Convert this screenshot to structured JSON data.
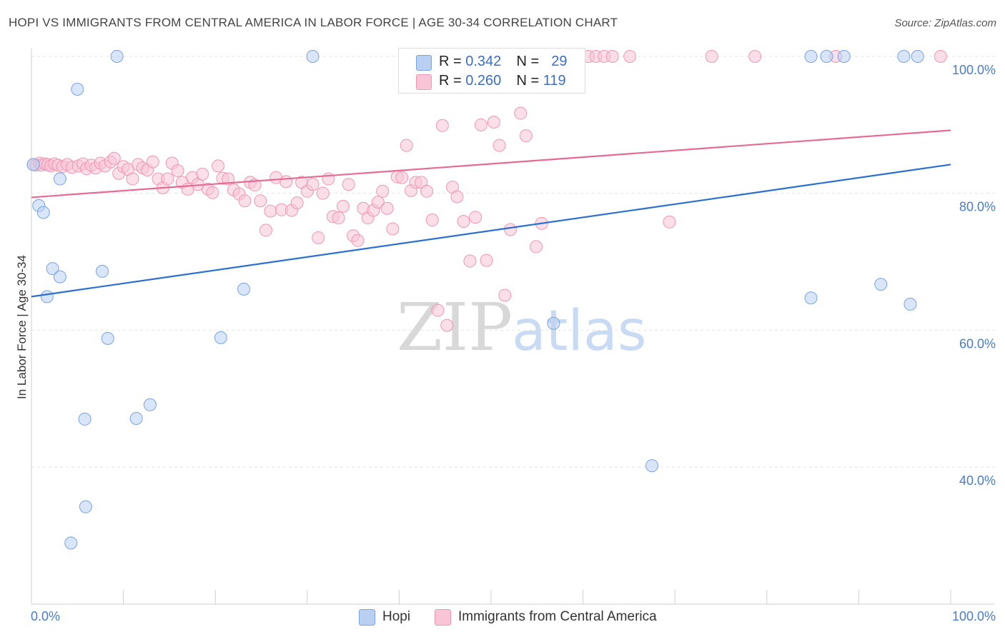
{
  "title": "HOPI VS IMMIGRANTS FROM CENTRAL AMERICA IN LABOR FORCE | AGE 30-34 CORRELATION CHART",
  "source": "Source: ZipAtlas.com",
  "watermark": {
    "zip": "ZIP",
    "atlas": "atlas"
  },
  "legend": {
    "r_label": "R =",
    "n_label": "N =",
    "hopi": {
      "r": "0.342",
      "n": "29"
    },
    "immigrants": {
      "r": "0.260",
      "n": "119"
    }
  },
  "bottom_legend": {
    "hopi": "Hopi",
    "immigrants": "Immigrants from Central America"
  },
  "colors": {
    "hopi_fill": "#b9d0f3",
    "hopi_stroke": "#7aa3e0",
    "hopi_line": "#2b6fd1",
    "imm_fill": "#f7c5d5",
    "imm_stroke": "#ee97b4",
    "imm_line": "#e56b93",
    "tick_text": "#4a7cc9",
    "grid": "#e3e3e3"
  },
  "chart_data": {
    "type": "scatter",
    "xlabel": "",
    "ylabel": "In Labor Force | Age 30-34",
    "xlim": [
      0,
      100
    ],
    "ylim": [
      20,
      102
    ],
    "y_ticks": [
      {
        "v": 100,
        "label": "100.0%"
      },
      {
        "v": 80,
        "label": "80.0%"
      },
      {
        "v": 60,
        "label": "60.0%"
      },
      {
        "v": 40,
        "label": "40.0%"
      }
    ],
    "x_ticks": [
      {
        "v": 0,
        "label": "0.0%"
      },
      {
        "v": 100,
        "label": "100.0%"
      }
    ],
    "x_minor_ticks": [
      0,
      10,
      20,
      30,
      40,
      50,
      60,
      70,
      80,
      90,
      100
    ],
    "series": [
      {
        "name": "Hopi",
        "trend": {
          "x": [
            0,
            100
          ],
          "y": [
            64.9,
            84.2
          ]
        },
        "points": [
          [
            9.3,
            100
          ],
          [
            30.6,
            100
          ],
          [
            84.8,
            100
          ],
          [
            86.5,
            100
          ],
          [
            88.4,
            100
          ],
          [
            94.9,
            100
          ],
          [
            96.4,
            100
          ],
          [
            5,
            95.2
          ],
          [
            3.1,
            82.1
          ],
          [
            0.8,
            78.2
          ],
          [
            1.3,
            77.2
          ],
          [
            2.3,
            69
          ],
          [
            3.1,
            67.8
          ],
          [
            7.7,
            68.6
          ],
          [
            23.1,
            66
          ],
          [
            1.7,
            64.9
          ],
          [
            84.8,
            64.7
          ],
          [
            92.4,
            66.7
          ],
          [
            95.6,
            63.8
          ],
          [
            8.3,
            58.8
          ],
          [
            20.6,
            58.9
          ],
          [
            56.8,
            61
          ],
          [
            5.8,
            47
          ],
          [
            11.4,
            47.1
          ],
          [
            12.9,
            49.1
          ],
          [
            67.5,
            40.2
          ],
          [
            5.9,
            34.2
          ],
          [
            4.3,
            28.9
          ],
          [
            0.2,
            84.2
          ]
        ]
      },
      {
        "name": "Immigrants from Central America",
        "trend": {
          "x": [
            0,
            100
          ],
          "y": [
            79.4,
            89.2
          ]
        },
        "points": [
          [
            0.2,
            84.2
          ],
          [
            0.5,
            84.1
          ],
          [
            0.9,
            84.4
          ],
          [
            1.1,
            84.1
          ],
          [
            1.5,
            84.3
          ],
          [
            1.8,
            84.2
          ],
          [
            2.1,
            84.0
          ],
          [
            2.5,
            84.3
          ],
          [
            2.9,
            84.1
          ],
          [
            3.4,
            83.9
          ],
          [
            3.9,
            84.2
          ],
          [
            4.4,
            83.8
          ],
          [
            5.1,
            84.0
          ],
          [
            5.6,
            84.3
          ],
          [
            6.0,
            83.6
          ],
          [
            6.5,
            84.1
          ],
          [
            7.0,
            83.7
          ],
          [
            7.5,
            84.4
          ],
          [
            8.0,
            84.0
          ],
          [
            8.6,
            84.6
          ],
          [
            9.0,
            85.1
          ],
          [
            9.5,
            82.9
          ],
          [
            10.0,
            83.9
          ],
          [
            10.5,
            83.5
          ],
          [
            11.0,
            82.1
          ],
          [
            11.6,
            84.2
          ],
          [
            12.1,
            83.7
          ],
          [
            12.6,
            83.4
          ],
          [
            13.2,
            84.6
          ],
          [
            13.8,
            82.1
          ],
          [
            14.3,
            80.8
          ],
          [
            14.8,
            82.1
          ],
          [
            15.3,
            84.4
          ],
          [
            15.9,
            83.3
          ],
          [
            16.4,
            81.6
          ],
          [
            17.0,
            80.6
          ],
          [
            17.5,
            82.3
          ],
          [
            18.1,
            81.3
          ],
          [
            18.6,
            82.8
          ],
          [
            19.2,
            80.6
          ],
          [
            19.7,
            80.1
          ],
          [
            20.3,
            84.0
          ],
          [
            20.8,
            82.2
          ],
          [
            21.4,
            82.1
          ],
          [
            22.0,
            80.5
          ],
          [
            22.6,
            79.9
          ],
          [
            23.2,
            78.9
          ],
          [
            23.8,
            81.6
          ],
          [
            24.3,
            81.2
          ],
          [
            24.9,
            78.9
          ],
          [
            25.5,
            74.6
          ],
          [
            26.0,
            77.4
          ],
          [
            26.6,
            82.3
          ],
          [
            27.2,
            77.6
          ],
          [
            27.7,
            81.7
          ],
          [
            28.3,
            77.5
          ],
          [
            28.9,
            78.6
          ],
          [
            29.4,
            81.6
          ],
          [
            30.0,
            80.3
          ],
          [
            30.6,
            81.3
          ],
          [
            31.2,
            73.5
          ],
          [
            31.7,
            80.0
          ],
          [
            32.3,
            82.1
          ],
          [
            32.8,
            76.6
          ],
          [
            33.4,
            76.4
          ],
          [
            33.9,
            78.1
          ],
          [
            34.5,
            81.3
          ],
          [
            35.0,
            73.8
          ],
          [
            35.5,
            73.1
          ],
          [
            36.1,
            77.8
          ],
          [
            36.6,
            76.4
          ],
          [
            37.2,
            77.5
          ],
          [
            37.7,
            78.7
          ],
          [
            38.2,
            80.3
          ],
          [
            38.7,
            77.8
          ],
          [
            39.3,
            74.8
          ],
          [
            39.8,
            82.4
          ],
          [
            40.3,
            82.3
          ],
          [
            40.8,
            87.0
          ],
          [
            41.3,
            80.4
          ],
          [
            41.8,
            81.6
          ],
          [
            42.4,
            81.6
          ],
          [
            43.0,
            80.3
          ],
          [
            43.6,
            76.1
          ],
          [
            44.2,
            62.9
          ],
          [
            44.7,
            89.9
          ],
          [
            45.2,
            60.7
          ],
          [
            45.8,
            80.9
          ],
          [
            46.3,
            79.5
          ],
          [
            47.0,
            75.9
          ],
          [
            47.7,
            70.1
          ],
          [
            48.3,
            76.5
          ],
          [
            48.9,
            90.0
          ],
          [
            49.5,
            70.2
          ],
          [
            50.3,
            90.4
          ],
          [
            50.9,
            87.0
          ],
          [
            51.5,
            65.1
          ],
          [
            52.1,
            74.7
          ],
          [
            53.2,
            91.7
          ],
          [
            53.8,
            88.4
          ],
          [
            54.9,
            72.2
          ],
          [
            55.5,
            75.6
          ],
          [
            55.0,
            100
          ],
          [
            58.7,
            100
          ],
          [
            60.6,
            100
          ],
          [
            61.4,
            100
          ],
          [
            62.3,
            100
          ],
          [
            63.2,
            100
          ],
          [
            65.1,
            100
          ],
          [
            69.4,
            75.8
          ],
          [
            74.0,
            100
          ],
          [
            78.7,
            100
          ],
          [
            87.5,
            100
          ],
          [
            98.9,
            100
          ],
          [
            44.8,
            100
          ],
          [
            46.6,
            100
          ],
          [
            54.8,
            100
          ]
        ]
      }
    ]
  }
}
